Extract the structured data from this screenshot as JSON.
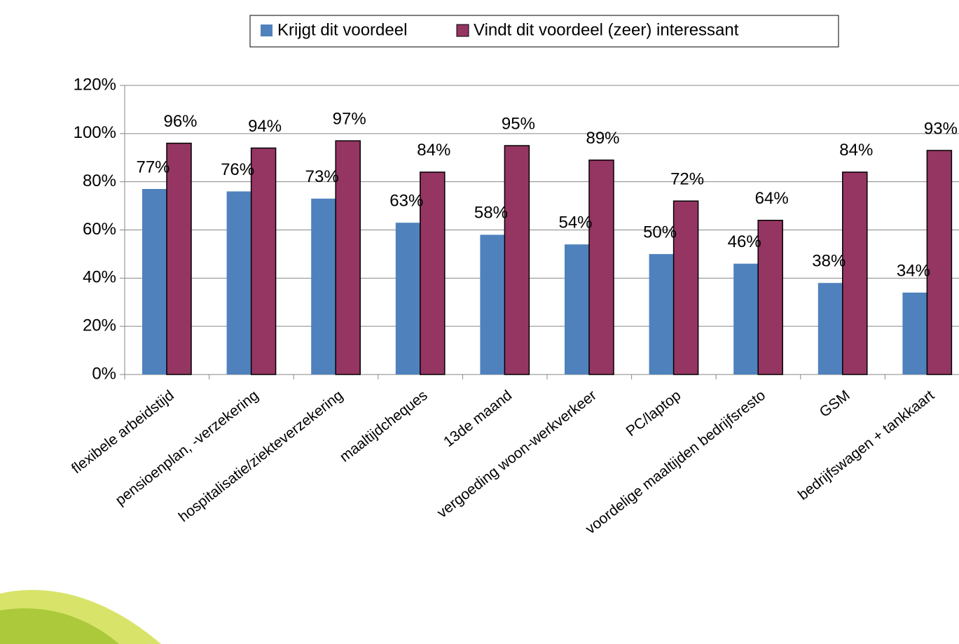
{
  "chart_data": {
    "type": "bar",
    "categories": [
      "flexibele arbeidstijd",
      "pensioenplan, -verzekering",
      "hospitalisatie/ziekteverzekering",
      "maaltijdcheques",
      "13de maand",
      "vergoeding woon-werkverkeer",
      "PC/laptop",
      "voordelige maaltijden bedrijfsresto",
      "GSM",
      "bedrijfswagen + tankkaart"
    ],
    "series": [
      {
        "name": "Krijgt dit voordeel",
        "color": "#4f81bd",
        "values": [
          77,
          76,
          73,
          63,
          58,
          54,
          50,
          46,
          38,
          34
        ],
        "value_labels": [
          "77%",
          "76%",
          "73%",
          "63%",
          "58%",
          "54%",
          "50%",
          "46%",
          "38%",
          "34%"
        ]
      },
      {
        "name": "Vindt dit voordeel (zeer) interessant",
        "color": "#953562",
        "values": [
          96,
          94,
          97,
          84,
          95,
          89,
          72,
          64,
          84,
          93
        ],
        "value_labels": [
          "96%",
          "94%",
          "97%",
          "84%",
          "95%",
          "89%",
          "72%",
          "64%",
          "84%",
          "93%"
        ]
      }
    ],
    "ylim": [
      0,
      120
    ],
    "yticks": [
      {
        "value": 0,
        "label": "0%"
      },
      {
        "value": 20,
        "label": "20%"
      },
      {
        "value": 40,
        "label": "40%"
      },
      {
        "value": 60,
        "label": "60%"
      },
      {
        "value": 80,
        "label": "80%"
      },
      {
        "value": 100,
        "label": "100%"
      },
      {
        "value": 120,
        "label": "120%"
      }
    ],
    "grid": true,
    "legend": "top"
  }
}
